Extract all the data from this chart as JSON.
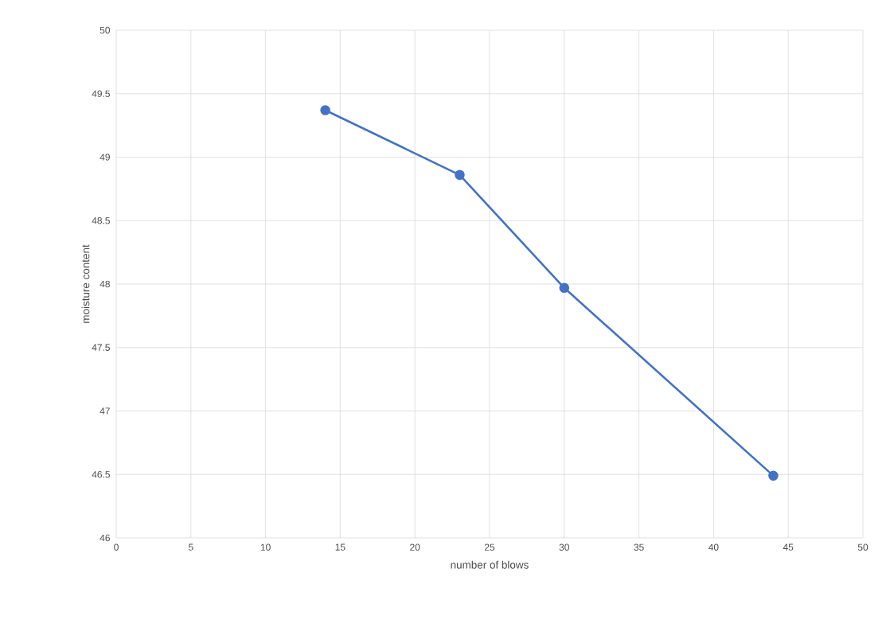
{
  "chart_data": {
    "type": "line",
    "xlabel": "number of blows",
    "ylabel": "moisture content",
    "x": [
      14,
      23,
      30,
      44
    ],
    "series": [
      {
        "color": "#4472c4",
        "values": [
          49.37,
          48.86,
          47.97,
          46.49
        ]
      }
    ],
    "xlim": [
      0,
      50
    ],
    "xticks": [
      0,
      5,
      10,
      15,
      20,
      25,
      30,
      35,
      40,
      45,
      50
    ],
    "ylim": [
      46,
      50
    ],
    "yticks": [
      46,
      46.5,
      47,
      47.5,
      48,
      48.5,
      49,
      49.5,
      50
    ],
    "grid": true,
    "marker": "circle",
    "line_style": "solid"
  }
}
